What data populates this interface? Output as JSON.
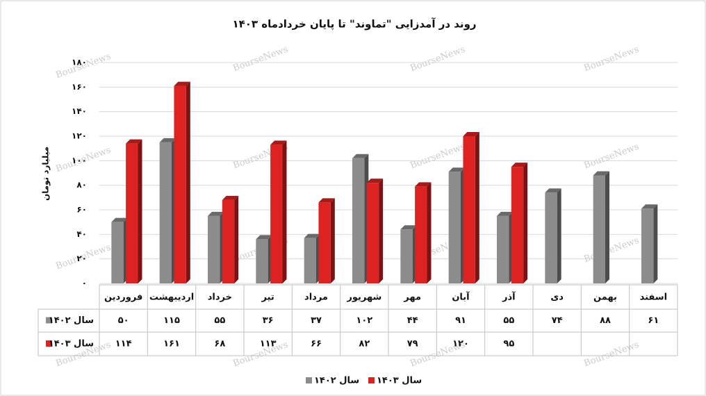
{
  "chart_data": {
    "type": "bar",
    "title": "روند در آمدزایی \"تماوند\" تا پایان خردادماه ۱۴۰۳",
    "y_label": "میلیارد تومان",
    "watermark": "BourseNews",
    "categories": [
      "فروردین",
      "اردیبهشت",
      "خرداد",
      "تیر",
      "مرداد",
      "شهریور",
      "مهر",
      "آبان",
      "آذر",
      "دی",
      "بهمن",
      "اسفند"
    ],
    "series": [
      {
        "name": "سال ۱۴۰۲",
        "color": "#8c8c8c",
        "values": [
          50,
          115,
          55,
          36,
          37,
          102,
          44,
          91,
          55,
          74,
          88,
          61
        ],
        "value_labels": [
          "۵۰",
          "۱۱۵",
          "۵۵",
          "۳۶",
          "۳۷",
          "۱۰۲",
          "۴۴",
          "۹۱",
          "۵۵",
          "۷۴",
          "۸۸",
          "۶۱"
        ]
      },
      {
        "name": "سال ۱۴۰۳",
        "color": "#dd2222",
        "values": [
          114,
          161,
          68,
          113,
          66,
          82,
          79,
          120,
          95,
          null,
          null,
          null
        ],
        "value_labels": [
          "۱۱۴",
          "۱۶۱",
          "۶۸",
          "۱۱۳",
          "۶۶",
          "۸۲",
          "۷۹",
          "۱۲۰",
          "۹۵",
          null,
          null,
          null
        ]
      }
    ],
    "ylim": [
      0,
      180
    ],
    "yticks": [
      {
        "value": 0,
        "label": "۰"
      },
      {
        "value": 20,
        "label": "۲۰"
      },
      {
        "value": 40,
        "label": "۴۰"
      },
      {
        "value": 60,
        "label": "۶۰"
      },
      {
        "value": 80,
        "label": "۸۰"
      },
      {
        "value": 100,
        "label": "۱۰۰"
      },
      {
        "value": 120,
        "label": "۱۲۰"
      },
      {
        "value": 140,
        "label": "۱۴۰"
      },
      {
        "value": 160,
        "label": "۱۶۰"
      },
      {
        "value": 180,
        "label": "۱۸۰"
      }
    ],
    "grid": true,
    "legend": "bottom"
  }
}
